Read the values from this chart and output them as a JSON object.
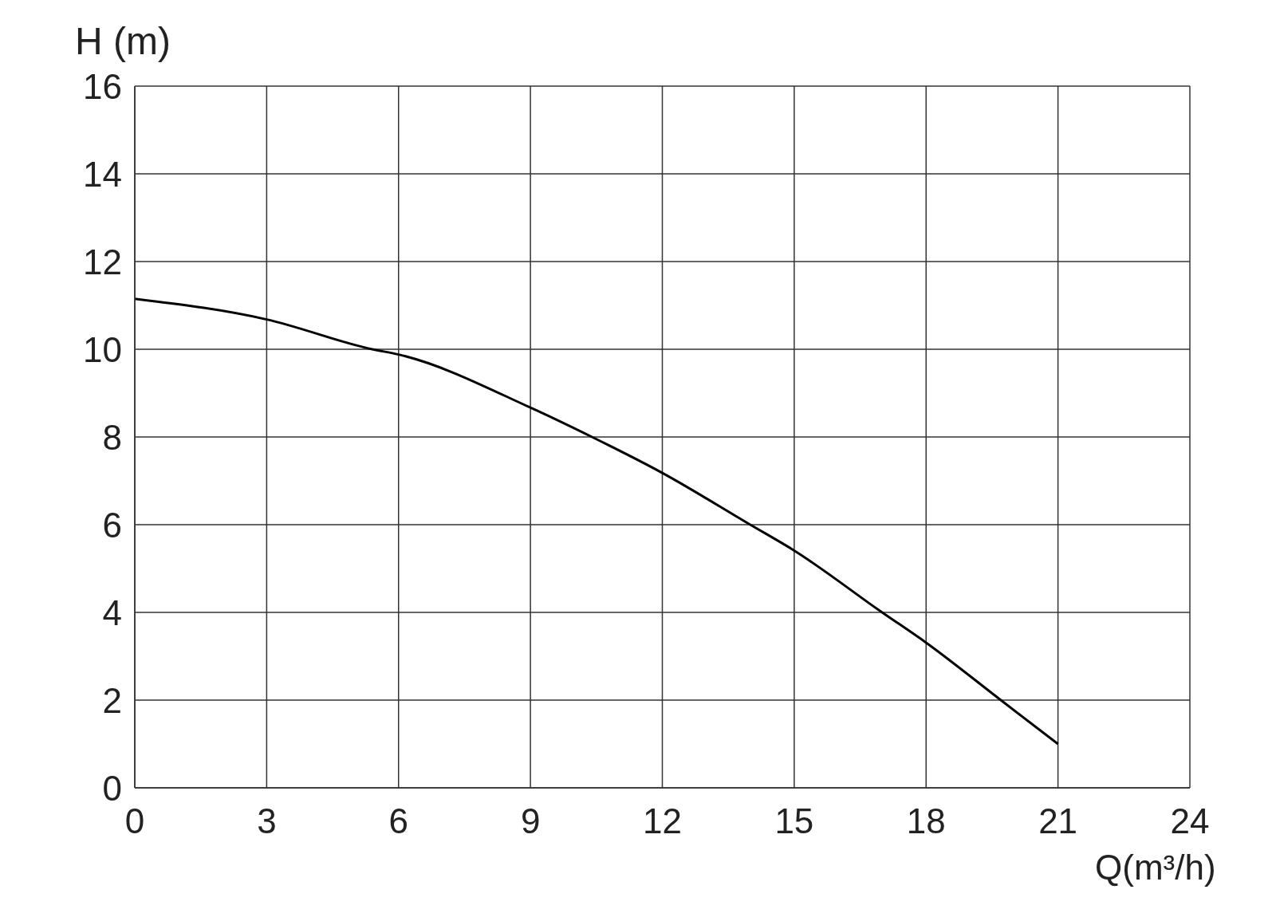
{
  "chart_data": {
    "type": "line",
    "xlabel": "Q(m³/h)",
    "ylabel": "H (m)",
    "x": [
      0,
      3,
      5.4,
      6,
      9,
      10.4,
      12,
      14,
      15,
      17,
      18,
      19.7,
      21
    ],
    "series": [
      {
        "color": "#000000",
        "values": [
          11.15,
          10.68,
          10,
          9.88,
          8.67,
          8,
          7.18,
          6,
          5.41,
          4,
          3.31,
          2,
          1
        ]
      }
    ],
    "xlim": [
      0,
      24
    ],
    "xticks": [
      0,
      3,
      6,
      9,
      12,
      15,
      18,
      21,
      24
    ],
    "ylim": [
      0,
      16
    ],
    "yticks": [
      0,
      2,
      4,
      6,
      8,
      10,
      12,
      14,
      16
    ],
    "grid": true
  }
}
